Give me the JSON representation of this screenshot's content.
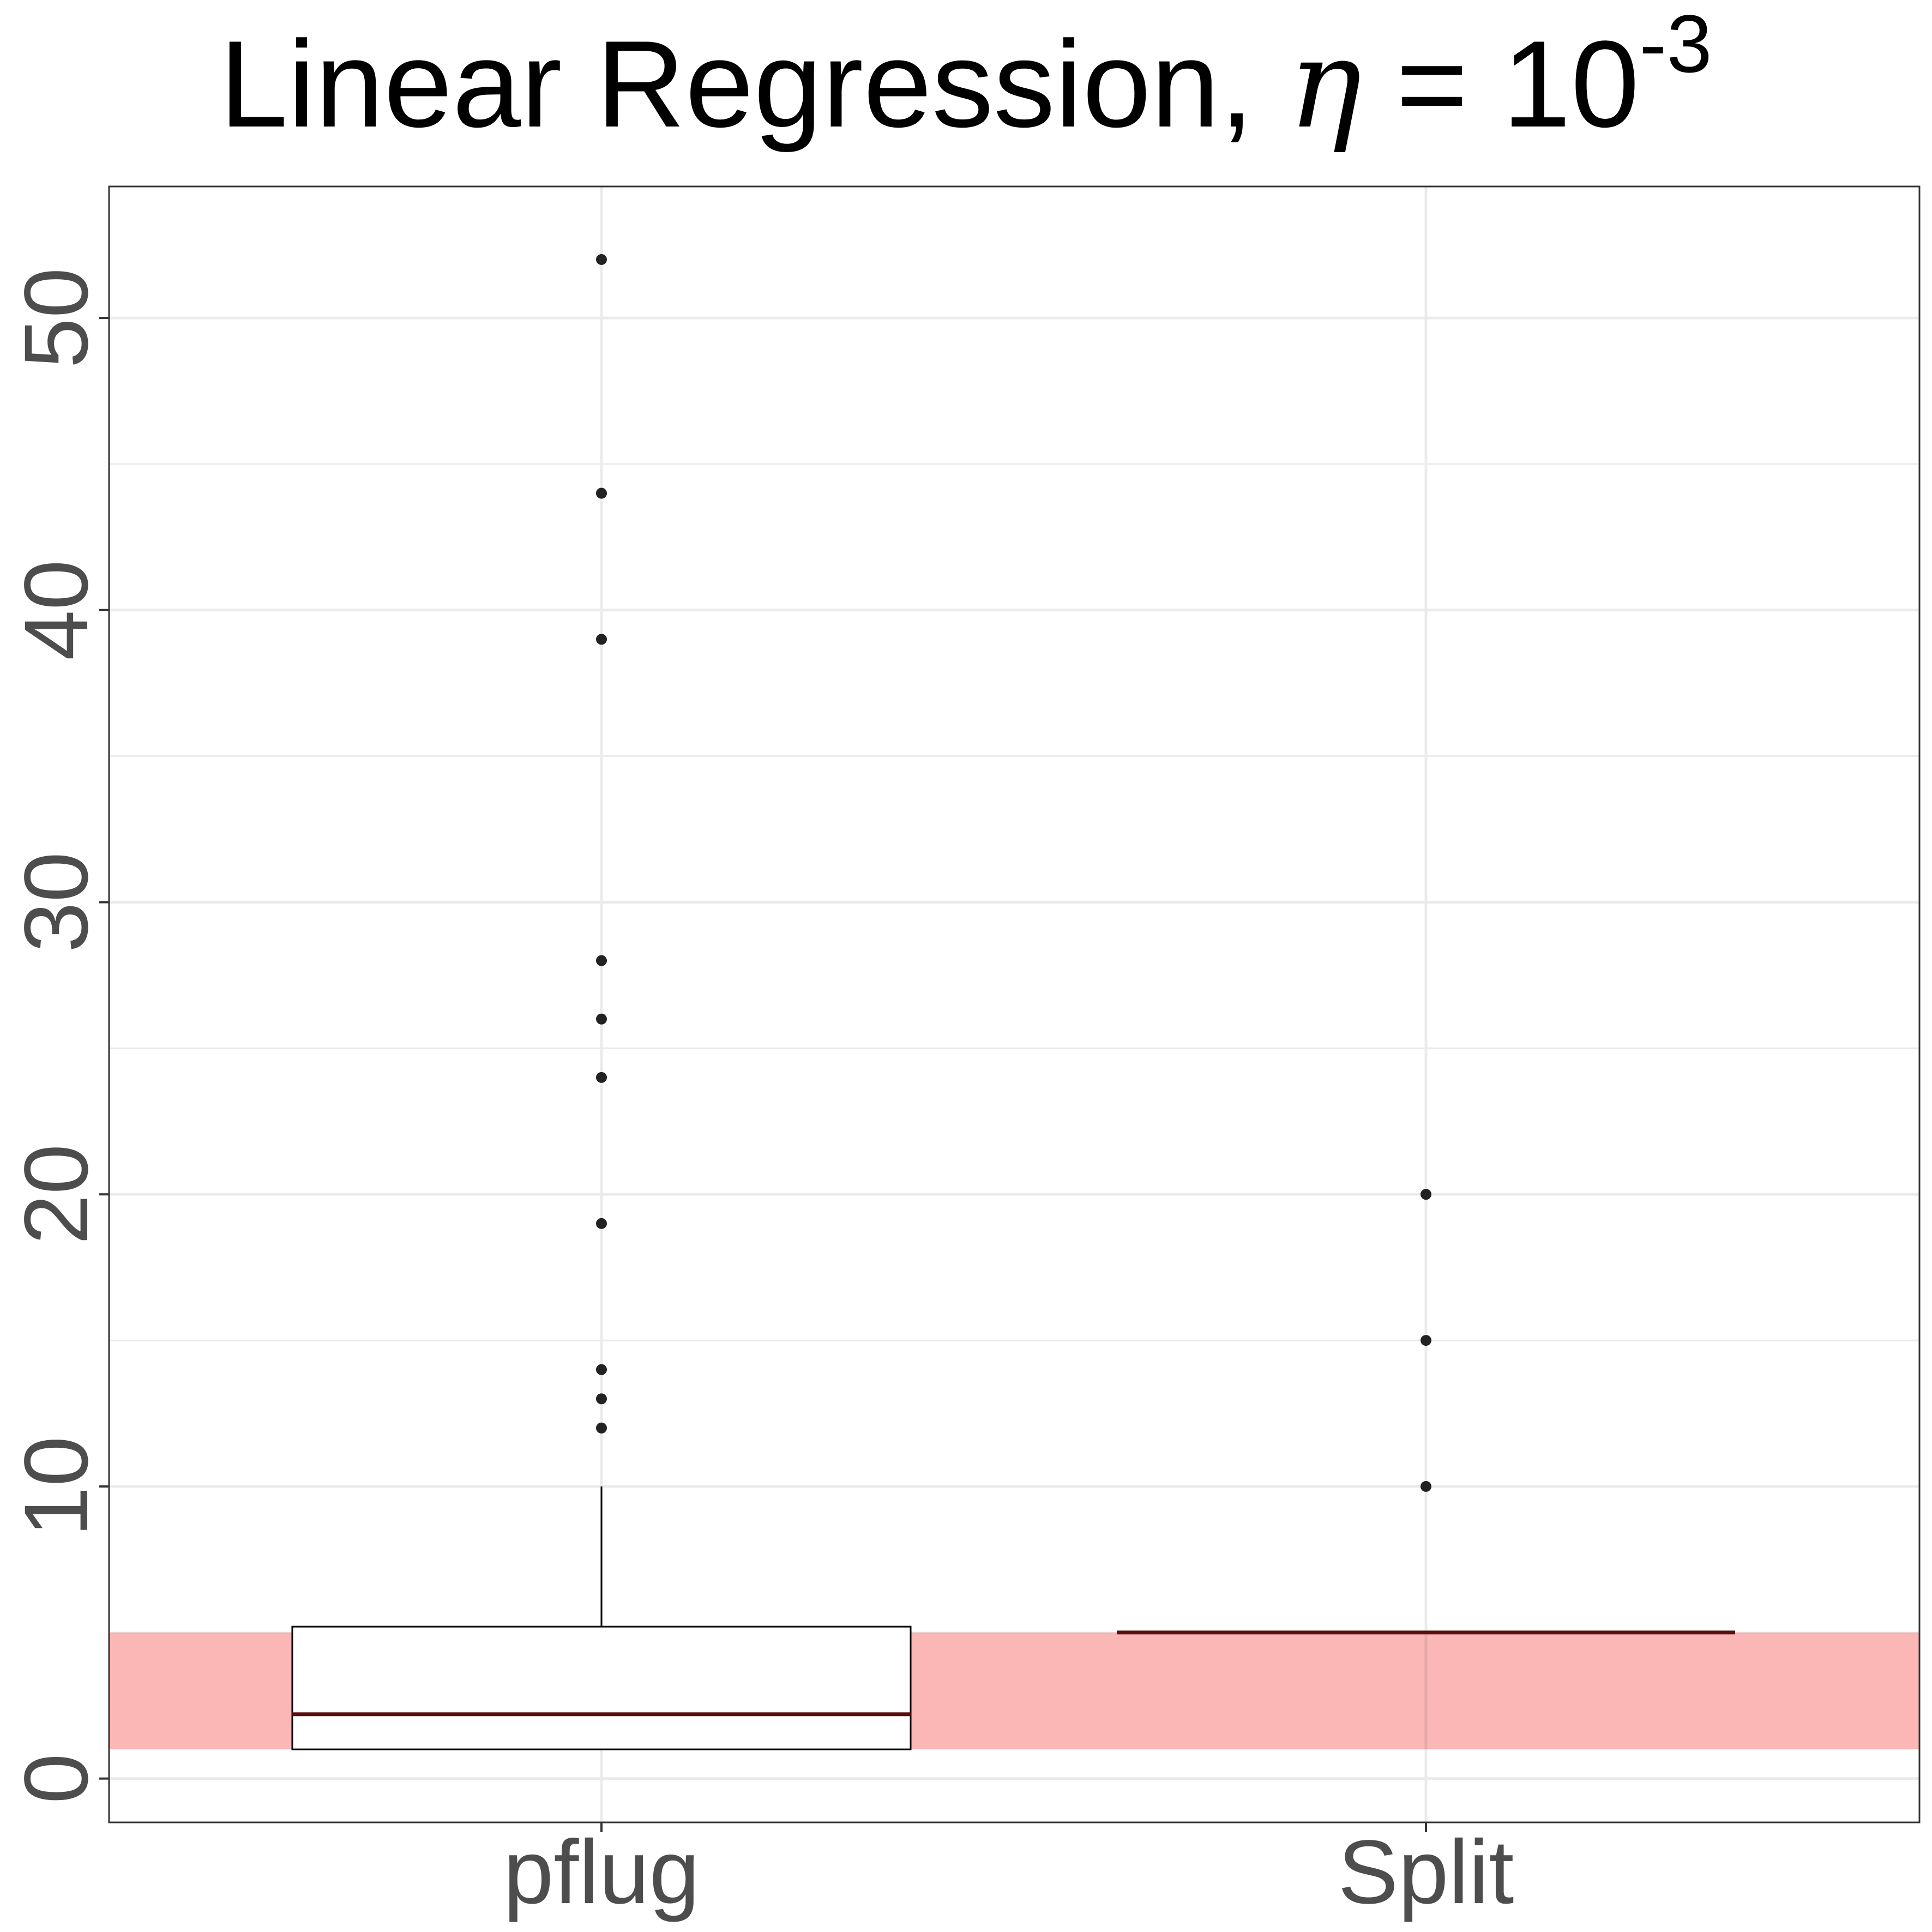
{
  "chart_data": {
    "type": "box",
    "title": {
      "prefix": "Linear Regression, ",
      "symbol": "η",
      "equals": " = 10",
      "exponent": "-3"
    },
    "xlabel": "",
    "ylabel": "",
    "categories": [
      "pflug",
      "Split"
    ],
    "ylim": [
      -1.5,
      54.5
    ],
    "y_ticks": [
      0,
      10,
      20,
      30,
      40,
      50
    ],
    "y_minor_ticks": [
      5,
      15,
      25,
      35,
      45
    ],
    "grid": true,
    "highlight_band": {
      "ymin": 1.0,
      "ymax": 5.0,
      "color": "#fbb2b2"
    },
    "boxes": [
      {
        "category": "pflug",
        "q1": 1.0,
        "median": 2.2,
        "q3": 5.2,
        "whisker_low": 1.0,
        "whisker_high": 10.0,
        "outliers": [
          12,
          13,
          14,
          19,
          24,
          26,
          28,
          39,
          44,
          52
        ]
      },
      {
        "category": "Split",
        "q1": 5.0,
        "median": 5.0,
        "q3": 5.0,
        "whisker_low": 5.0,
        "whisker_high": 5.0,
        "outliers": [
          10,
          15,
          20
        ]
      }
    ],
    "colors": {
      "median_line": "#5a0f0f",
      "box_outline": "#000000",
      "points": "#222222",
      "grid": "#ebebeb",
      "panel_border": "#333333"
    }
  }
}
